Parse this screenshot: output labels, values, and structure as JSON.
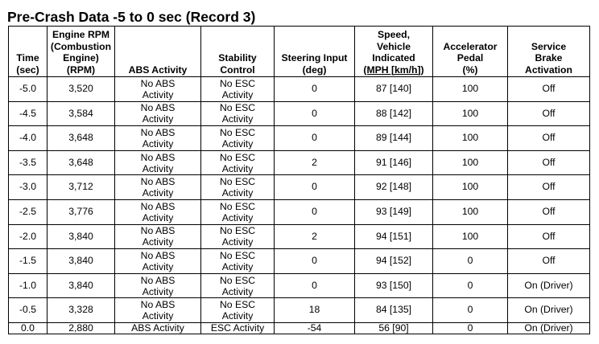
{
  "title": "Pre-Crash Data -5 to 0 sec (Record 3)",
  "headers": [
    [
      "Time",
      "(sec)"
    ],
    [
      "Engine RPM",
      "(Combustion",
      "Engine)",
      "(RPM)"
    ],
    [
      "ABS Activity"
    ],
    [
      "Stability",
      "Control"
    ],
    [
      "Steering Input",
      "(deg)"
    ],
    [
      "Speed,",
      "Vehicle",
      "Indicated",
      "(MPH [km/h])"
    ],
    [
      "Accelerator",
      "Pedal",
      "(%)"
    ],
    [
      "Service",
      "Brake",
      "Activation"
    ]
  ],
  "rows": [
    {
      "time": "-5.0",
      "rpm": "3,520",
      "abs": [
        "No ABS",
        "Activity"
      ],
      "esc": [
        "No ESC",
        "Activity"
      ],
      "steering": "0",
      "speed": "87 [140]",
      "accel": "100",
      "brake": "Off"
    },
    {
      "time": "-4.5",
      "rpm": "3,584",
      "abs": [
        "No ABS",
        "Activity"
      ],
      "esc": [
        "No ESC",
        "Activity"
      ],
      "steering": "0",
      "speed": "88 [142]",
      "accel": "100",
      "brake": "Off"
    },
    {
      "time": "-4.0",
      "rpm": "3,648",
      "abs": [
        "No ABS",
        "Activity"
      ],
      "esc": [
        "No ESC",
        "Activity"
      ],
      "steering": "0",
      "speed": "89 [144]",
      "accel": "100",
      "brake": "Off"
    },
    {
      "time": "-3.5",
      "rpm": "3,648",
      "abs": [
        "No ABS",
        "Activity"
      ],
      "esc": [
        "No ESC",
        "Activity"
      ],
      "steering": "2",
      "speed": "91 [146]",
      "accel": "100",
      "brake": "Off"
    },
    {
      "time": "-3.0",
      "rpm": "3,712",
      "abs": [
        "No ABS",
        "Activity"
      ],
      "esc": [
        "No ESC",
        "Activity"
      ],
      "steering": "0",
      "speed": "92 [148]",
      "accel": "100",
      "brake": "Off"
    },
    {
      "time": "-2.5",
      "rpm": "3,776",
      "abs": [
        "No ABS",
        "Activity"
      ],
      "esc": [
        "No ESC",
        "Activity"
      ],
      "steering": "0",
      "speed": "93 [149]",
      "accel": "100",
      "brake": "Off"
    },
    {
      "time": "-2.0",
      "rpm": "3,840",
      "abs": [
        "No ABS",
        "Activity"
      ],
      "esc": [
        "No ESC",
        "Activity"
      ],
      "steering": "2",
      "speed": "94 [151]",
      "accel": "100",
      "brake": "Off"
    },
    {
      "time": "-1.5",
      "rpm": "3,840",
      "abs": [
        "No ABS",
        "Activity"
      ],
      "esc": [
        "No ESC",
        "Activity"
      ],
      "steering": "0",
      "speed": "94 [152]",
      "accel": "0",
      "brake": "Off"
    },
    {
      "time": "-1.0",
      "rpm": "3,840",
      "abs": [
        "No ABS",
        "Activity"
      ],
      "esc": [
        "No ESC",
        "Activity"
      ],
      "steering": "0",
      "speed": "93 [150]",
      "accel": "0",
      "brake": "On (Driver)"
    },
    {
      "time": "-0.5",
      "rpm": "3,328",
      "abs": [
        "No ABS",
        "Activity"
      ],
      "esc": [
        "No ESC",
        "Activity"
      ],
      "steering": "18",
      "speed": "84 [135]",
      "accel": "0",
      "brake": "On (Driver)"
    },
    {
      "time": "0.0",
      "rpm": "2,880",
      "abs": [
        "ABS Activity"
      ],
      "esc": [
        "ESC Activity"
      ],
      "steering": "-54",
      "speed": "56 [90]",
      "accel": "0",
      "brake": "On (Driver)"
    }
  ]
}
